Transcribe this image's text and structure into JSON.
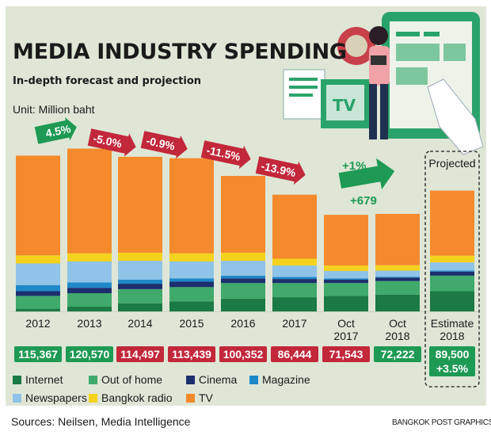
{
  "header": {
    "title": "MEDIA INDUSTRY SPENDING",
    "subtitle": "In-depth forecast and projection",
    "unit": "Unit: Million baht"
  },
  "footer": {
    "sources": "Sources: Neilsen, Media Intelligence",
    "credit": "BANGKOK POST GRAPHICS"
  },
  "colors": {
    "Internet": "#1b7a45",
    "Out of home": "#3faa6c",
    "Cinema": "#1d2f6e",
    "Magazine": "#1e88c8",
    "Newspapers": "#8fc3e8",
    "Bangkok radio": "#f5d21d",
    "TV": "#f48a2c",
    "up": "#1e9a54",
    "down": "#c2273a",
    "background": "#dfe6d6"
  },
  "legend": [
    {
      "label": "Internet",
      "color": "#1b7a45"
    },
    {
      "label": "Out of home",
      "color": "#3faa6c"
    },
    {
      "label": "Cinema",
      "color": "#1d2f6e"
    },
    {
      "label": "Magazine",
      "color": "#1e88c8"
    },
    {
      "label": "Newspapers",
      "color": "#8fc3e8"
    },
    {
      "label": "Bangkok radio",
      "color": "#f5d21d"
    },
    {
      "label": "TV",
      "color": "#f48a2c"
    }
  ],
  "chart_data": {
    "type": "bar",
    "stacked": true,
    "categories": [
      [
        "2012"
      ],
      [
        "2013"
      ],
      [
        "2014"
      ],
      [
        "2015"
      ],
      [
        "2016"
      ],
      [
        "2017"
      ],
      [
        "Oct",
        "2017"
      ],
      [
        "Oct",
        "2018"
      ],
      [
        "Estimate",
        "2018"
      ]
    ],
    "totals": [
      "115,367",
      "120,570",
      "114,497",
      "113,439",
      "100,352",
      "86,444",
      "71,543",
      "72,222",
      "89,500"
    ],
    "total_values": [
      115367,
      120570,
      114497,
      113439,
      100352,
      86444,
      71543,
      72222,
      89500
    ],
    "total_status": [
      "up",
      "up",
      "down",
      "down",
      "down",
      "down",
      "down",
      "up",
      "up"
    ],
    "estimate_note": "+3.5%",
    "projected_label": "Projected",
    "series": [
      {
        "name": "Internet",
        "values": [
          2000,
          3500,
          6000,
          7500,
          9500,
          10500,
          11500,
          12500,
          15000
        ]
      },
      {
        "name": "Out of home",
        "values": [
          9500,
          10000,
          10500,
          10500,
          11500,
          10500,
          9500,
          10000,
          11500
        ]
      },
      {
        "name": "Cinema",
        "values": [
          3500,
          4000,
          4000,
          4000,
          3500,
          3000,
          2500,
          2500,
          3000
        ]
      },
      {
        "name": "Magazine",
        "values": [
          4500,
          4000,
          3000,
          2500,
          2000,
          1500,
          1000,
          700,
          800
        ]
      },
      {
        "name": "Newspapers",
        "values": [
          16000,
          15500,
          14000,
          12500,
          11000,
          8500,
          5500,
          4500,
          6000
        ]
      },
      {
        "name": "Bangkok radio",
        "values": [
          6000,
          6000,
          6000,
          6000,
          6000,
          5000,
          4000,
          4000,
          5000
        ]
      },
      {
        "name": "TV",
        "values": [
          73867,
          77570,
          70997,
          70439,
          56852,
          47444,
          37543,
          38022,
          48200
        ]
      }
    ],
    "changes": [
      {
        "label": "4.5%",
        "between": [
          0,
          1
        ],
        "direction": "up"
      },
      {
        "label": "-5.0%",
        "between": [
          1,
          2
        ],
        "direction": "down"
      },
      {
        "label": "-0.9%",
        "between": [
          2,
          3
        ],
        "direction": "down"
      },
      {
        "label": "-11.5%",
        "between": [
          3,
          4
        ],
        "direction": "down"
      },
      {
        "label": "-13.9%",
        "between": [
          4,
          5
        ],
        "direction": "down"
      },
      {
        "label": "+1%",
        "between": [
          6,
          7
        ],
        "direction": "up"
      },
      {
        "label": "+679",
        "between": [
          6,
          7
        ],
        "direction": "up"
      }
    ],
    "ylim": [
      0,
      125000
    ],
    "grid": false,
    "legend_position": "bottom"
  }
}
